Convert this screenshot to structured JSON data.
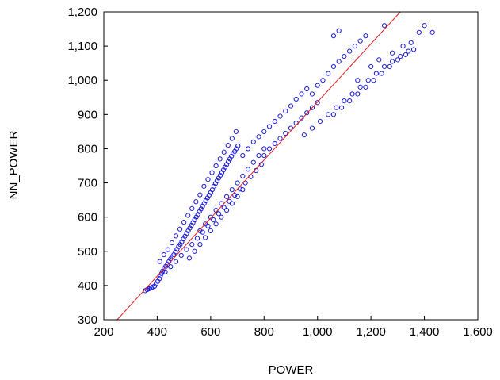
{
  "chart_data": {
    "type": "scatter",
    "title": "",
    "xlabel": "POWER",
    "ylabel": "NN_POWER",
    "xlim": [
      200,
      1600
    ],
    "ylim": [
      300,
      1200
    ],
    "xticks": [
      "200",
      "400",
      "600",
      "800",
      "1,000",
      "1,200",
      "1,400",
      "1,600"
    ],
    "yticks": [
      "300",
      "400",
      "500",
      "600",
      "700",
      "800",
      "900",
      "1,000",
      "1,100",
      "1,200"
    ],
    "grid": false,
    "legend": "none",
    "series": [
      {
        "marker": "hollow-circle",
        "color": "#1c1cd6",
        "points": [
          [
            355,
            385
          ],
          [
            362,
            388
          ],
          [
            368,
            390
          ],
          [
            372,
            392
          ],
          [
            378,
            393
          ],
          [
            384,
            396
          ],
          [
            390,
            398
          ],
          [
            396,
            405
          ],
          [
            402,
            412
          ],
          [
            408,
            420
          ],
          [
            412,
            428
          ],
          [
            416,
            435
          ],
          [
            420,
            442
          ],
          [
            426,
            450
          ],
          [
            432,
            456
          ],
          [
            438,
            462
          ],
          [
            444,
            470
          ],
          [
            450,
            478
          ],
          [
            456,
            484
          ],
          [
            462,
            490
          ],
          [
            468,
            498
          ],
          [
            474,
            506
          ],
          [
            480,
            514
          ],
          [
            486,
            520
          ],
          [
            492,
            528
          ],
          [
            498,
            536
          ],
          [
            504,
            544
          ],
          [
            510,
            552
          ],
          [
            516,
            560
          ],
          [
            522,
            568
          ],
          [
            528,
            576
          ],
          [
            534,
            584
          ],
          [
            540,
            592
          ],
          [
            546,
            600
          ],
          [
            552,
            608
          ],
          [
            558,
            616
          ],
          [
            564,
            624
          ],
          [
            570,
            632
          ],
          [
            576,
            640
          ],
          [
            582,
            648
          ],
          [
            588,
            656
          ],
          [
            594,
            664
          ],
          [
            600,
            672
          ],
          [
            606,
            680
          ],
          [
            612,
            690
          ],
          [
            618,
            698
          ],
          [
            624,
            706
          ],
          [
            630,
            714
          ],
          [
            636,
            722
          ],
          [
            642,
            730
          ],
          [
            648,
            738
          ],
          [
            654,
            746
          ],
          [
            660,
            754
          ],
          [
            666,
            762
          ],
          [
            672,
            770
          ],
          [
            678,
            778
          ],
          [
            684,
            786
          ],
          [
            690,
            792
          ],
          [
            696,
            800
          ],
          [
            702,
            808
          ],
          [
            410,
            470
          ],
          [
            425,
            490
          ],
          [
            440,
            505
          ],
          [
            455,
            525
          ],
          [
            470,
            545
          ],
          [
            485,
            565
          ],
          [
            500,
            585
          ],
          [
            515,
            605
          ],
          [
            530,
            625
          ],
          [
            545,
            645
          ],
          [
            560,
            665
          ],
          [
            575,
            690
          ],
          [
            590,
            710
          ],
          [
            605,
            730
          ],
          [
            620,
            750
          ],
          [
            635,
            770
          ],
          [
            650,
            790
          ],
          [
            665,
            810
          ],
          [
            680,
            830
          ],
          [
            695,
            850
          ],
          [
            430,
            440
          ],
          [
            450,
            455
          ],
          [
            470,
            470
          ],
          [
            490,
            488
          ],
          [
            510,
            505
          ],
          [
            530,
            520
          ],
          [
            550,
            538
          ],
          [
            570,
            556
          ],
          [
            590,
            574
          ],
          [
            610,
            592
          ],
          [
            630,
            610
          ],
          [
            650,
            628
          ],
          [
            670,
            646
          ],
          [
            690,
            664
          ],
          [
            710,
            682
          ],
          [
            730,
            700
          ],
          [
            750,
            718
          ],
          [
            770,
            736
          ],
          [
            790,
            754
          ],
          [
            720,
            780
          ],
          [
            740,
            800
          ],
          [
            760,
            820
          ],
          [
            780,
            835
          ],
          [
            800,
            850
          ],
          [
            820,
            865
          ],
          [
            840,
            880
          ],
          [
            860,
            895
          ],
          [
            880,
            910
          ],
          [
            900,
            925
          ],
          [
            920,
            945
          ],
          [
            940,
            960
          ],
          [
            960,
            975
          ],
          [
            800,
            780
          ],
          [
            820,
            800
          ],
          [
            840,
            815
          ],
          [
            860,
            830
          ],
          [
            880,
            845
          ],
          [
            900,
            860
          ],
          [
            920,
            875
          ],
          [
            940,
            890
          ],
          [
            960,
            905
          ],
          [
            980,
            920
          ],
          [
            1000,
            935
          ],
          [
            980,
            960
          ],
          [
            1000,
            985
          ],
          [
            1020,
            1000
          ],
          [
            1040,
            1020
          ],
          [
            1060,
            1040
          ],
          [
            1080,
            1055
          ],
          [
            1100,
            1070
          ],
          [
            1120,
            1085
          ],
          [
            1140,
            1100
          ],
          [
            1160,
            1115
          ],
          [
            1180,
            1130
          ],
          [
            950,
            840
          ],
          [
            980,
            860
          ],
          [
            1010,
            880
          ],
          [
            1040,
            900
          ],
          [
            1070,
            920
          ],
          [
            1100,
            940
          ],
          [
            1130,
            960
          ],
          [
            1160,
            980
          ],
          [
            1190,
            1000
          ],
          [
            1220,
            1020
          ],
          [
            1250,
            1040
          ],
          [
            1280,
            1055
          ],
          [
            1310,
            1070
          ],
          [
            1340,
            1085
          ],
          [
            1060,
            900
          ],
          [
            1090,
            920
          ],
          [
            1120,
            940
          ],
          [
            1150,
            960
          ],
          [
            1180,
            980
          ],
          [
            1210,
            1000
          ],
          [
            1240,
            1020
          ],
          [
            1270,
            1040
          ],
          [
            1300,
            1060
          ],
          [
            1330,
            1075
          ],
          [
            1360,
            1090
          ],
          [
            1380,
            1140
          ],
          [
            1400,
            1160
          ],
          [
            1430,
            1140
          ],
          [
            1250,
            1160
          ],
          [
            1080,
            1145
          ],
          [
            1060,
            1130
          ],
          [
            1280,
            1080
          ],
          [
            1320,
            1100
          ],
          [
            1350,
            1110
          ],
          [
            1230,
            1060
          ],
          [
            1200,
            1040
          ],
          [
            1150,
            1000
          ],
          [
            560,
            560
          ],
          [
            580,
            580
          ],
          [
            600,
            600
          ],
          [
            620,
            620
          ],
          [
            640,
            640
          ],
          [
            660,
            660
          ],
          [
            680,
            680
          ],
          [
            700,
            700
          ],
          [
            720,
            720
          ],
          [
            740,
            740
          ],
          [
            760,
            760
          ],
          [
            780,
            780
          ],
          [
            800,
            800
          ],
          [
            520,
            480
          ],
          [
            540,
            500
          ],
          [
            560,
            520
          ],
          [
            580,
            540
          ],
          [
            600,
            560
          ],
          [
            620,
            580
          ],
          [
            640,
            600
          ],
          [
            660,
            620
          ],
          [
            680,
            640
          ],
          [
            700,
            660
          ],
          [
            720,
            680
          ]
        ]
      }
    ],
    "reference_line": {
      "type": "45-degree",
      "color": "#e02020",
      "from": [
        250,
        300
      ],
      "to": [
        1310,
        1200
      ]
    }
  }
}
